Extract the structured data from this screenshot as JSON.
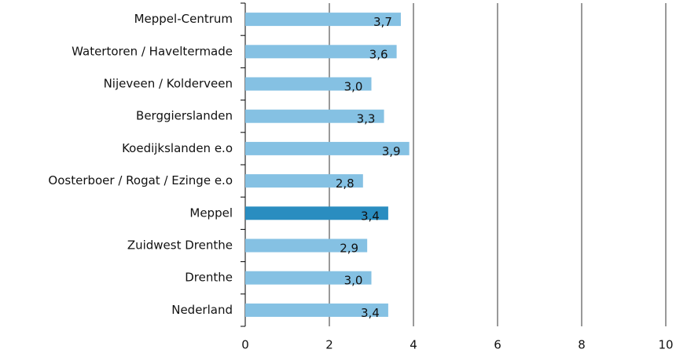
{
  "chart_data": {
    "type": "hbar",
    "categories": [
      "Meppel-Centrum",
      "Watertoren / Haveltermade",
      "Nijeveen / Kolderveen",
      "Berggierslanden",
      "Koedijkslanden e.o",
      "Oosterboer / Rogat / Ezinge e.o",
      "Meppel",
      "Zuidwest Drenthe",
      "Drenthe",
      "Nederland"
    ],
    "values": [
      3.7,
      3.6,
      3.0,
      3.3,
      3.9,
      2.8,
      3.4,
      2.9,
      3.0,
      3.4
    ],
    "value_labels": [
      "3,7",
      "3,6",
      "3,0",
      "3,3",
      "3,9",
      "2,8",
      "3,4",
      "2,9",
      "3,0",
      "3,4"
    ],
    "colors": [
      "#85c1e3",
      "#85c1e3",
      "#85c1e3",
      "#85c1e3",
      "#85c1e3",
      "#85c1e3",
      "#2a8dc0",
      "#85c1e3",
      "#85c1e3",
      "#85c1e3"
    ],
    "xlim": [
      0,
      10
    ],
    "xticks": [
      0,
      2,
      4,
      6,
      8,
      10
    ],
    "grid": true
  }
}
